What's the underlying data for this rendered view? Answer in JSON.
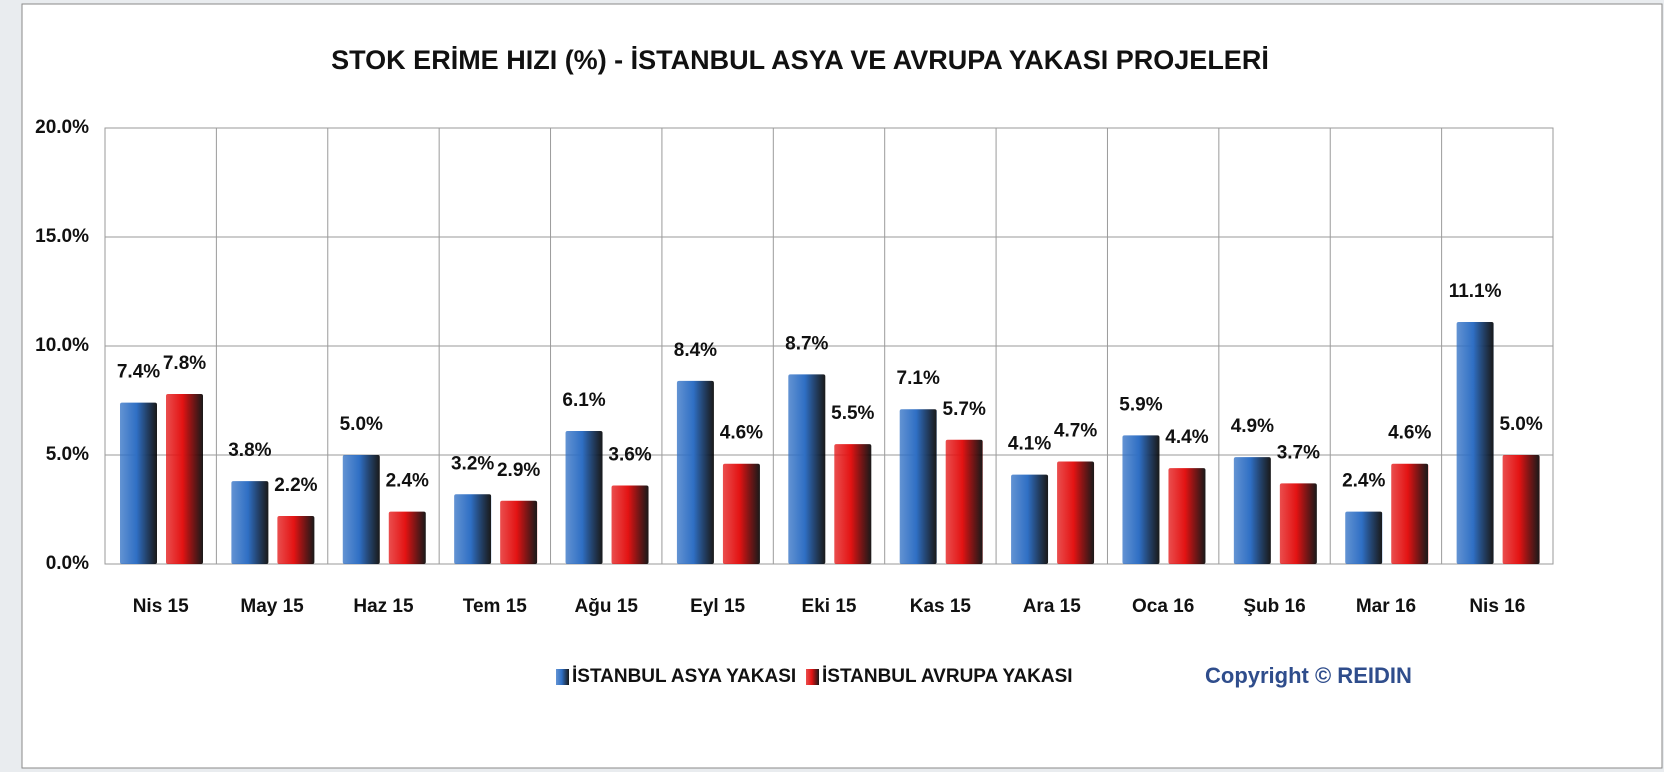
{
  "chart_data": {
    "type": "bar",
    "title": "STOK ERİME HIZI (%) - İSTANBUL ASYA VE AVRUPA YAKASI PROJELERİ",
    "categories": [
      "Nis 15",
      "May 15",
      "Haz 15",
      "Tem 15",
      "Ağu 15",
      "Eyl 15",
      "Eki 15",
      "Kas 15",
      "Ara 15",
      "Oca 16",
      "Şub 16",
      "Mar 16",
      "Nis 16"
    ],
    "series": [
      {
        "name": "İSTANBUL ASYA YAKASI",
        "color": "#2f6fc4",
        "values": [
          7.4,
          3.8,
          5.0,
          3.2,
          6.1,
          8.4,
          8.7,
          7.1,
          4.1,
          5.9,
          4.9,
          2.4,
          11.1
        ],
        "value_labels": [
          "7.4%",
          "3.8%",
          "5.0%",
          "3.2%",
          "6.1%",
          "8.4%",
          "8.7%",
          "7.1%",
          "4.1%",
          "5.9%",
          "4.9%",
          "2.4%",
          "11.1%"
        ]
      },
      {
        "name": "İSTANBUL AVRUPA YAKASI",
        "color": "#e31313",
        "values": [
          7.8,
          2.2,
          2.4,
          2.9,
          3.6,
          4.6,
          5.5,
          5.7,
          4.7,
          4.4,
          3.7,
          4.6,
          5.0
        ],
        "value_labels": [
          "7.8%",
          "2.2%",
          "2.4%",
          "2.9%",
          "3.6%",
          "4.6%",
          "5.5%",
          "5.7%",
          "4.7%",
          "4.4%",
          "3.7%",
          "4.6%",
          "5.0%"
        ]
      }
    ],
    "ylim": [
      0,
      20
    ],
    "yticks": [
      {
        "value": 0,
        "label": "0.0%"
      },
      {
        "value": 5,
        "label": "5.0%"
      },
      {
        "value": 10,
        "label": "10.0%"
      },
      {
        "value": 15,
        "label": "15.0%"
      },
      {
        "value": 20,
        "label": "20.0%"
      }
    ],
    "grid": true,
    "legend": "bottom",
    "annotation": "Copyright © REIDIN"
  }
}
